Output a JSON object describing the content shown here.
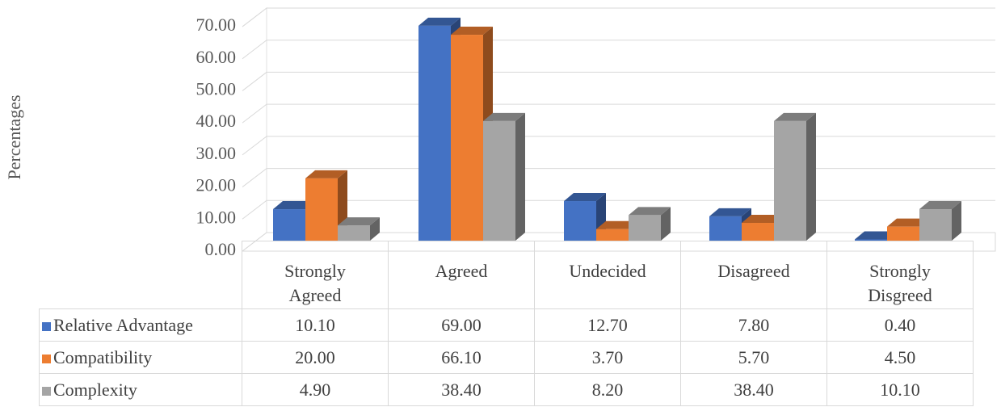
{
  "chart_data": {
    "type": "bar3d",
    "y_label": "Percentages",
    "categories": [
      "Strongly Agreed",
      "Agreed",
      "Undecided",
      "Disagreed",
      "Strongly Disgreed"
    ],
    "series": [
      {
        "name": "Relative Advantage",
        "color": "#4472c4",
        "values": [
          10.1,
          69,
          12.7,
          7.8,
          0.4
        ],
        "value_labels": [
          "10.10",
          "69.00",
          "12.70",
          "7.80",
          "0.40"
        ]
      },
      {
        "name": "Compatibility",
        "color": "#ed7d31",
        "values": [
          20,
          66.1,
          3.7,
          5.7,
          4.5
        ],
        "value_labels": [
          "20.00",
          "66.10",
          "3.70",
          "5.70",
          "4.50"
        ]
      },
      {
        "name": "Complexity",
        "color": "#a5a5a5",
        "values": [
          4.9,
          38.4,
          8.2,
          38.4,
          10.1
        ],
        "value_labels": [
          "4.90",
          "38.40",
          "8.20",
          "38.40",
          "10.10"
        ]
      }
    ],
    "ylim": [
      0,
      70
    ],
    "yticks": [
      {
        "value": 0,
        "label": "0.00"
      },
      {
        "value": 10,
        "label": "10.00"
      },
      {
        "value": 20,
        "label": "20.00"
      },
      {
        "value": 30,
        "label": "30.00"
      },
      {
        "value": 40,
        "label": "40.00"
      },
      {
        "value": 50,
        "label": "50.00"
      },
      {
        "value": 60,
        "label": "60.00"
      },
      {
        "value": 70,
        "label": "70.00"
      }
    ],
    "grid": true
  }
}
